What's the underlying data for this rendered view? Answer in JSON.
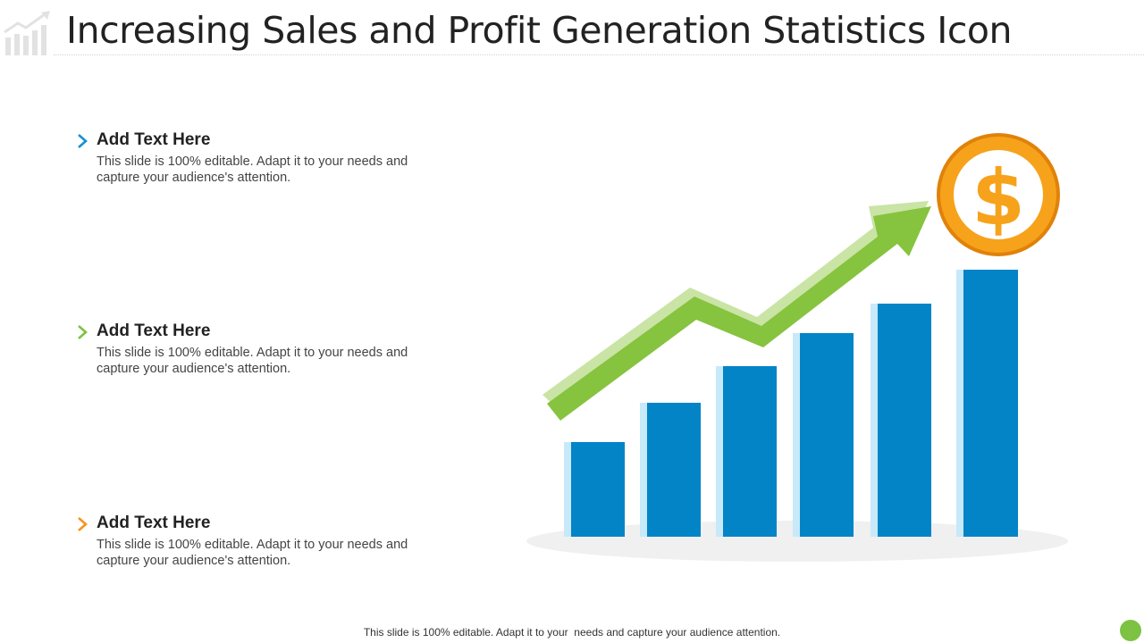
{
  "title": "Increasing Sales and Profit Generation Statistics Icon",
  "items": [
    {
      "heading": "Add Text Here",
      "body": "This slide is 100% editable. Adapt it to your needs and capture your audience's attention.",
      "accent": "#1a8fd0"
    },
    {
      "heading": "Add Text Here",
      "body": "This slide is 100% editable. Adapt it to your needs and capture your audience's attention.",
      "accent": "#7dc242"
    },
    {
      "heading": "Add Text Here",
      "body": "This slide is 100% editable. Adapt it to your needs and capture your audience's attention.",
      "accent": "#f7941d"
    }
  ],
  "illustration": {
    "icon": "rising-bar-chart-with-arrow-and-dollar-coin",
    "bar_count": 6,
    "colors": {
      "bar": "#0284c7",
      "bar_side": "#c7e9f9",
      "arrow": "#86c33e",
      "arrow_highlight": "#c9e4a5",
      "coin": "#f7a21b",
      "coin_dark": "#e0820a"
    },
    "coin_symbol": "$"
  },
  "footer": "This slide is 100% editable. Adapt it to your  needs and capture your audience attention.",
  "colors": {
    "status_dot": "#7dc242",
    "title_icon": "#e2e2e2"
  }
}
